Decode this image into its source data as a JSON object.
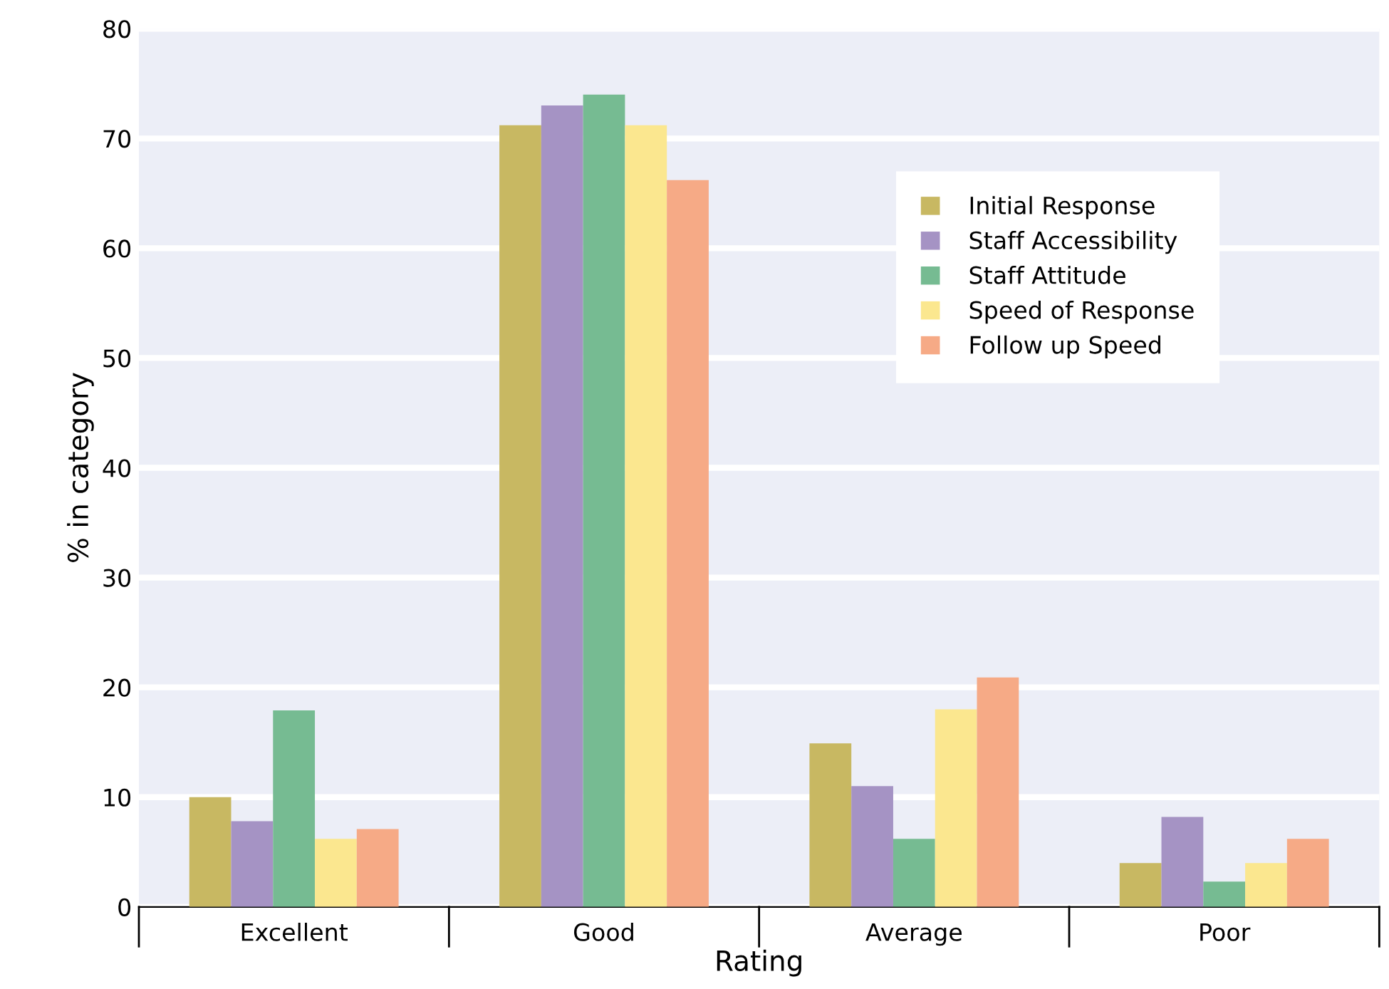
{
  "chart_data": {
    "type": "bar",
    "xlabel": "Rating",
    "ylabel": "% in category",
    "categories": [
      "Excellent",
      "Good",
      "Average",
      "Poor"
    ],
    "series": [
      {
        "name": "Initial Response",
        "color": "#c8b862",
        "values": [
          10,
          71.2,
          14.9,
          4
        ]
      },
      {
        "name": "Staff Accessibility",
        "color": "#a593c4",
        "values": [
          7.8,
          73,
          11,
          8.2
        ]
      },
      {
        "name": "Staff Attitude",
        "color": "#76bb92",
        "values": [
          17.9,
          74,
          6.2,
          2.3
        ]
      },
      {
        "name": "Speed of Response",
        "color": "#fbe78f",
        "values": [
          6.2,
          71.2,
          18,
          4
        ]
      },
      {
        "name": "Follow up Speed",
        "color": "#f6aa86",
        "values": [
          7.1,
          66.2,
          20.9,
          6.2
        ]
      }
    ],
    "ylim": [
      0,
      80
    ],
    "yticks": [
      0,
      10,
      20,
      30,
      40,
      50,
      60,
      70,
      80
    ],
    "grid": "y",
    "legend": "top right"
  }
}
